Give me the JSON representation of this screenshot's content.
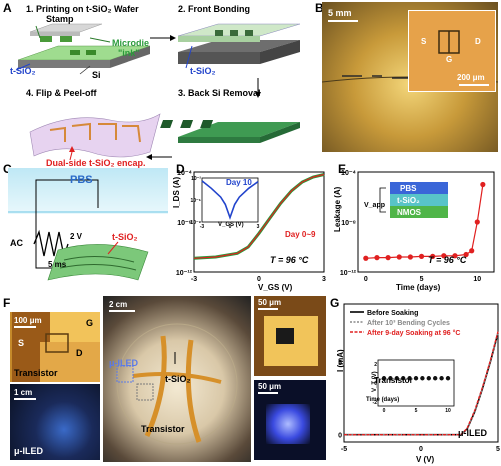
{
  "panel_a": {
    "label": "A",
    "step1": "1. Printing on t-SiO₂ Wafer",
    "step2": "2. Front Bonding",
    "step3": "3. Back Si Removal",
    "step4": "4. Flip & Peel-off",
    "stamp": "Stamp",
    "microdie1": "Microdie",
    "microdie2": "\"ink\"",
    "tsio2": "t-SiO₂",
    "si": "Si",
    "tsio2b": "t-SiO₂",
    "encap": "Dual-side t-SiO₂ encap."
  },
  "panel_b": {
    "label": "B",
    "scale_main": "5 mm",
    "scale_inset": "200 μm",
    "s": "S",
    "g": "G",
    "d": "D"
  },
  "panel_c": {
    "label": "C",
    "pbs": "PBS",
    "ac": "AC",
    "volt": "2 V",
    "time": "5 ms",
    "tsio2": "t-SiO₂"
  },
  "panel_d": {
    "label": "D",
    "ylabel": "I_DS (A)",
    "xlabel": "V_GS (V)",
    "temp": "T = 96 °C",
    "day_range": "Day 0~9",
    "inset_title": "Day 10",
    "inset_xlabel": "V_GS (V)",
    "yticks": [
      "10⁻⁴",
      "10⁻⁸",
      "10⁻¹²"
    ],
    "xticks": [
      "-3",
      "0",
      "3"
    ],
    "inset_yticks": [
      "10⁻²",
      "10⁻⁵",
      "10⁻⁸"
    ],
    "inset_xticks": [
      "-3",
      "0",
      "3"
    ]
  },
  "panel_e": {
    "label": "E",
    "ylabel": "Leakage (A)",
    "xlabel": "Time (days)",
    "temp": "T = 96 °C",
    "vapp": "V_app",
    "layer1": "PBS",
    "layer2": "t-SiO₂",
    "layer3": "NMOS",
    "yticks": [
      "10⁻⁴",
      "10⁻⁸",
      "10⁻¹²"
    ],
    "xticks": [
      "0",
      "5",
      "10"
    ]
  },
  "panel_f": {
    "label": "F",
    "scale1": "100 μm",
    "s": "S",
    "g": "G",
    "d": "D",
    "transistor": "Transistor",
    "scale2": "1 cm",
    "iled": "μ-ILED",
    "scale3": "2 cm",
    "iled_main": "μ-ILED",
    "tsio2": "t-SiO₂",
    "transistor_main": "Transistor",
    "scale4": "50 μm",
    "scale5": "50 μm"
  },
  "panel_g": {
    "label": "G",
    "legend1": "Before Soaking",
    "legend2": "After 10³ Bending Cycles",
    "legend3": "After 9-day Soaking at 96 °C",
    "ylabel": "I (mA)",
    "xlabel": "V (V)",
    "iled": "μ-ILED",
    "inset_ylabel": "V_T (V)",
    "inset_xlabel": "Time (days)",
    "inset_title": "Transistor",
    "yticks": [
      "0",
      "5"
    ],
    "xticks": [
      "-5",
      "0",
      "5"
    ],
    "inset_yticks": [
      "2",
      "0",
      "-2"
    ],
    "inset_xticks": [
      "0",
      "5",
      "10"
    ]
  },
  "colors": {
    "red": "#e02020",
    "green": "#2a9a3a",
    "blue": "#2244cc",
    "gold": "#d8a23a"
  },
  "chart_data": [
    {
      "type": "line",
      "panel": "D",
      "xlabel": "V_GS (V)",
      "ylabel": "I_DS (A)",
      "xlim": [
        -3,
        3
      ],
      "ylim_log10": [
        -12,
        -4
      ],
      "x": [
        -3,
        -2,
        -1,
        -0.5,
        0,
        0.5,
        1,
        1.5,
        2,
        2.5,
        3
      ],
      "series": [
        {
          "name": "Day 0~9",
          "log10_values": [
            -10.9,
            -10.8,
            -10.5,
            -10.0,
            -8.9,
            -7.7,
            -6.5,
            -5.5,
            -4.8,
            -4.4,
            -4.2
          ]
        }
      ]
    },
    {
      "type": "line",
      "panel": "D-inset",
      "title": "Day 10",
      "xlabel": "V_GS (V)",
      "xlim": [
        -3,
        3
      ],
      "ylim_log10": [
        -8,
        -2
      ],
      "x": [
        -3,
        -2,
        -1,
        -0.5,
        0,
        0.5,
        1,
        2,
        3
      ],
      "series": [
        {
          "name": "Day 10",
          "log10_values": [
            -2.4,
            -3.4,
            -4.6,
            -5.6,
            -7.4,
            -5.6,
            -4.6,
            -3.4,
            -2.5
          ]
        }
      ]
    },
    {
      "type": "line",
      "panel": "E",
      "xlabel": "Time (days)",
      "ylabel": "Leakage (A)",
      "xlim": [
        -0.7,
        11.5
      ],
      "ylim_log10": [
        -12,
        -4
      ],
      "x": [
        0,
        1,
        2,
        3,
        4,
        5,
        6,
        7,
        8,
        9,
        9.5,
        10,
        10.5
      ],
      "series": [
        {
          "name": "Leakage",
          "log10_values": [
            -10.9,
            -10.85,
            -10.85,
            -10.8,
            -10.8,
            -10.75,
            -10.75,
            -10.7,
            -10.7,
            -10.6,
            -10.3,
            -8.0,
            -5.0
          ]
        }
      ]
    },
    {
      "type": "line",
      "panel": "G",
      "xlabel": "V (V)",
      "ylabel": "I (mA)",
      "xlim": [
        -5,
        5
      ],
      "ylim": [
        -0.5,
        9
      ],
      "x": [
        -5,
        0,
        2.6,
        3,
        3.5,
        4,
        4.5,
        5
      ],
      "series": [
        {
          "name": "Before Soaking",
          "values": [
            0,
            0,
            0,
            0.4,
            1.6,
            3.2,
            5.0,
            7.0
          ]
        },
        {
          "name": "After 10³ Bending Cycles",
          "values": [
            0,
            0,
            0,
            0.4,
            1.6,
            3.2,
            5.0,
            7.0
          ]
        },
        {
          "name": "After 9-day Soaking at 96 °C",
          "values": [
            0,
            0,
            0,
            0.45,
            1.7,
            3.3,
            5.1,
            7.1
          ]
        }
      ]
    },
    {
      "type": "scatter",
      "panel": "G-inset",
      "title": "Transistor",
      "xlabel": "Time (days)",
      "ylabel": "V_T (V)",
      "xlim": [
        0,
        10
      ],
      "ylim": [
        -2,
        2
      ],
      "x": [
        0,
        1,
        2,
        3,
        4,
        5,
        6,
        7,
        8,
        9,
        10
      ],
      "series": [
        {
          "name": "V_T",
          "values": [
            0.5,
            0.5,
            0.5,
            0.5,
            0.5,
            0.5,
            0.5,
            0.5,
            0.5,
            0.5,
            0.5
          ]
        }
      ]
    }
  ]
}
